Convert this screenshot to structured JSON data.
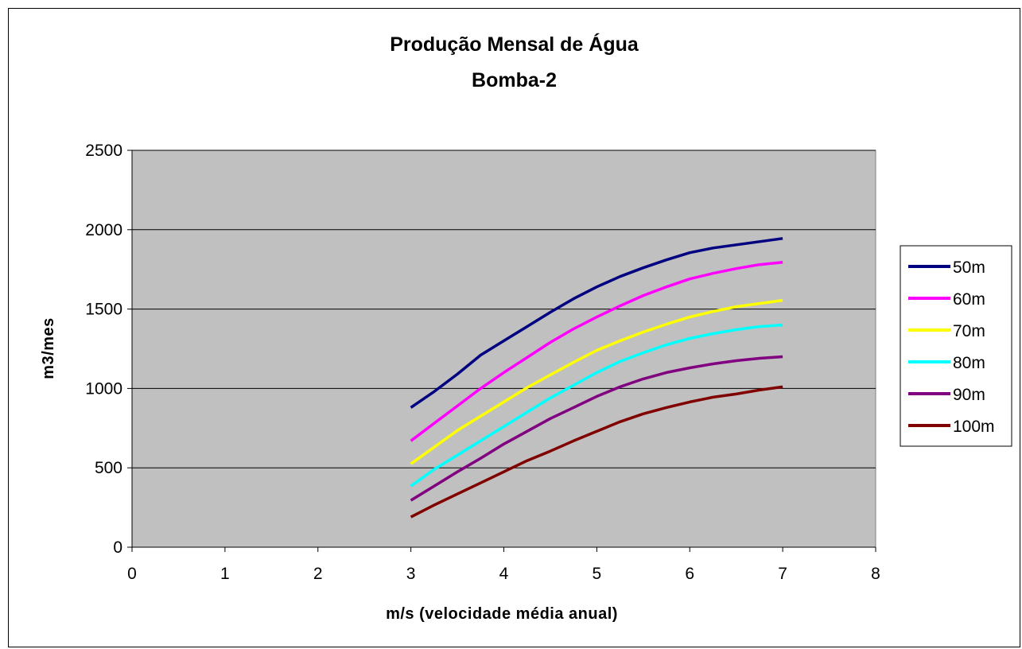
{
  "chart_data": {
    "type": "line",
    "title": "Produção Mensal de Água",
    "subtitle": "Bomba-2",
    "xlabel": "m/s (velocidade média anual)",
    "ylabel": "m3/mes",
    "xlim": [
      0,
      8
    ],
    "ylim": [
      0,
      2500
    ],
    "xticks": [
      "0",
      "1",
      "2",
      "3",
      "4",
      "5",
      "6",
      "7",
      "8"
    ],
    "yticks": [
      "0",
      "500",
      "1000",
      "1500",
      "2000",
      "2500"
    ],
    "grid": "horizontal",
    "legend_position": "right",
    "plot_background": "#C0C0C0",
    "x": [
      3,
      3.25,
      3.5,
      3.75,
      4,
      4.25,
      4.5,
      4.75,
      5,
      5.25,
      5.5,
      5.75,
      6,
      6.25,
      6.5,
      6.75,
      7
    ],
    "series": [
      {
        "name": "50m",
        "color": "#000080",
        "values": [
          880,
          980,
          1090,
          1210,
          1300,
          1390,
          1480,
          1565,
          1640,
          1705,
          1760,
          1810,
          1855,
          1885,
          1905,
          1925,
          1945
        ]
      },
      {
        "name": "60m",
        "color": "#FF00FF",
        "values": [
          670,
          780,
          890,
          1000,
          1100,
          1195,
          1290,
          1375,
          1450,
          1520,
          1585,
          1640,
          1690,
          1725,
          1755,
          1780,
          1795
        ]
      },
      {
        "name": "70m",
        "color": "#FFFF00",
        "values": [
          525,
          630,
          735,
          825,
          915,
          1005,
          1085,
          1165,
          1240,
          1300,
          1355,
          1405,
          1450,
          1485,
          1515,
          1535,
          1555
        ]
      },
      {
        "name": "80m",
        "color": "#00FFFF",
        "values": [
          385,
          490,
          580,
          670,
          760,
          850,
          940,
          1020,
          1100,
          1170,
          1225,
          1275,
          1315,
          1345,
          1370,
          1390,
          1400
        ]
      },
      {
        "name": "90m",
        "color": "#800080",
        "values": [
          295,
          385,
          475,
          560,
          650,
          730,
          810,
          880,
          950,
          1010,
          1060,
          1100,
          1130,
          1155,
          1175,
          1190,
          1200
        ]
      },
      {
        "name": "100m",
        "color": "#800000",
        "values": [
          190,
          265,
          335,
          405,
          475,
          545,
          605,
          670,
          730,
          790,
          840,
          880,
          915,
          945,
          965,
          990,
          1010
        ]
      }
    ]
  }
}
